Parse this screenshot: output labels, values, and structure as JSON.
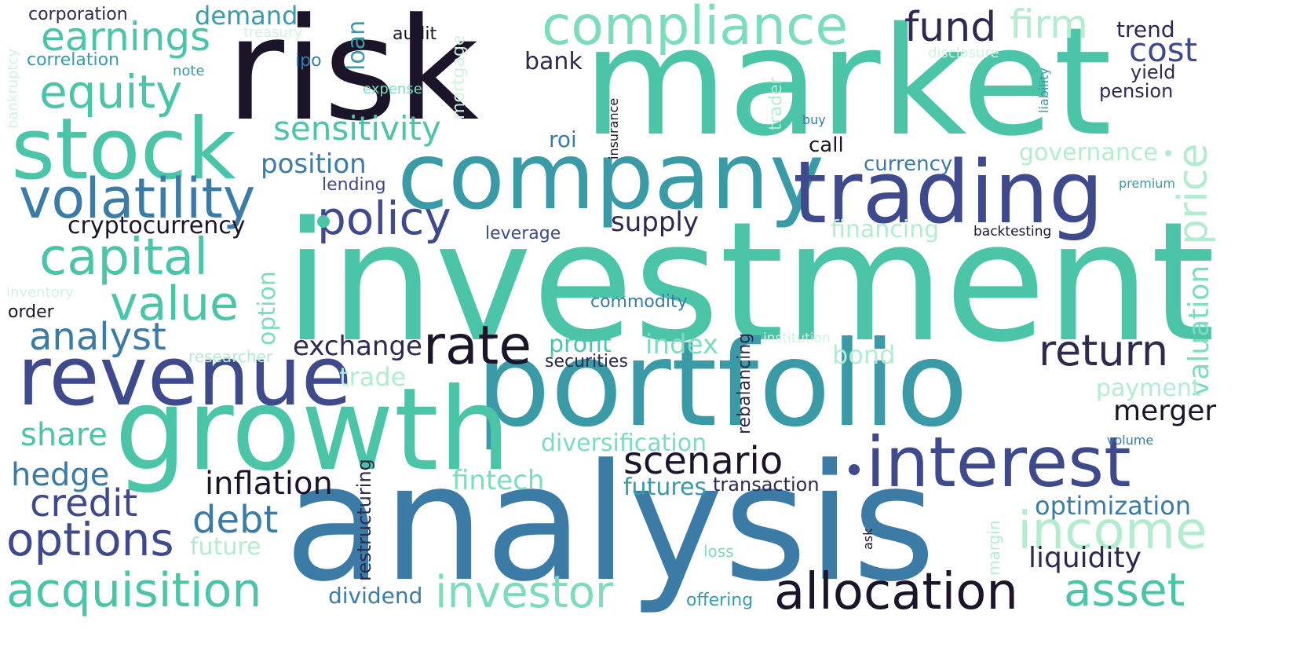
{
  "words": {
    "investment": "investment",
    "market": "market",
    "analysis": "analysis",
    "portfolio": "portfolio",
    "risk": "risk",
    "growth": "growth",
    "company": "company",
    "trading": "trading",
    "revenue": "revenue",
    "stock": "stock",
    "interest": "interest",
    "compliance": "compliance",
    "volatility": "volatility",
    "allocation": "allocation",
    "acquisition": "acquisition",
    "investor": "investor",
    "income": "income",
    "rate": "rate",
    "capital": "capital",
    "equity": "equity",
    "value": "value",
    "options": "options",
    "earnings": "earnings",
    "policy": "policy",
    "asset": "asset",
    "scenario": "scenario",
    "return": "return",
    "analyst": "analyst",
    "credit": "credit",
    "debt": "debt",
    "fund": "fund",
    "firm": "firm",
    "price": "price",
    "sensitivity": "sensitivity",
    "inflation": "inflation",
    "hedge": "hedge",
    "share": "share",
    "cost": "cost",
    "exchange": "exchange",
    "valuation": "valuation",
    "liquidity": "liquidity",
    "merger": "merger",
    "position": "position",
    "optimization": "optimization",
    "fintech": "fintech",
    "index": "index",
    "supply": "supply",
    "cryptocurrency": "cryptocurrency",
    "diversification": "diversification",
    "demand": "demand",
    "trade": "trade",
    "profit": "profit",
    "futures": "futures",
    "governance": "governance",
    "financing": "financing",
    "bond": "bond",
    "payment": "payment",
    "future": "future",
    "dividend": "dividend",
    "currency": "currency",
    "option": "option",
    "loan": "loan",
    "bank": "bank",
    "trend": "trend",
    "roi": "roi",
    "securities": "securities",
    "commodity": "commodity",
    "leverage": "leverage",
    "lending": "lending",
    "call": "call",
    "transaction": "transaction",
    "restructuring": "restructuring",
    "rebalancing": "rebalancing",
    "offering": "offering",
    "audit": "audit",
    "yield": "yield",
    "pension": "pension",
    "corporation": "corporation",
    "correlation": "correlation",
    "ipo": "ipo",
    "mortgage": "mortgage",
    "researcher": "researcher",
    "trader": "trader",
    "order": "order",
    "backtesting": "backtesting",
    "margin": "margin",
    "loss": "loss",
    "premium": "premium",
    "institution": "institution",
    "inventory": "inventory",
    "bankruptcy": "bankruptcy",
    "treasury": "treasury",
    "expense": "expense",
    "note": "note",
    "disclosure": "disclosure",
    "liability": "liability",
    "insurance": "insurance",
    "buy": "buy",
    "volume": "volume",
    "ask": "ask"
  }
}
